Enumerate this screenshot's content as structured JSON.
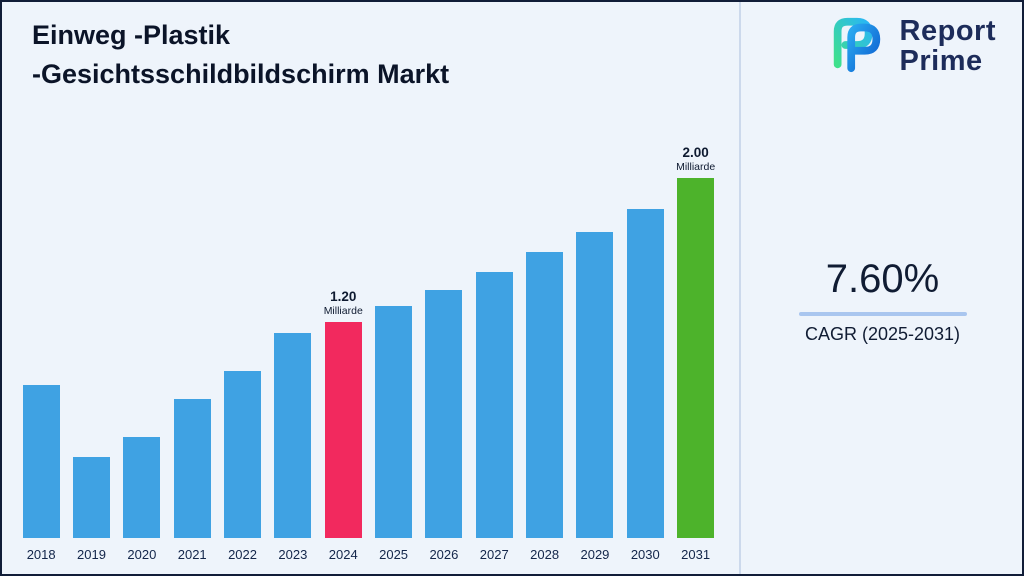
{
  "page": {
    "background": "#eef4fb",
    "border_color": "#111d38"
  },
  "header": {
    "title_line1": "Einweg -Plastik",
    "title_line2": "-Gesichtsschildbildschirm Markt"
  },
  "logo": {
    "line1": "Report",
    "line2": "Prime"
  },
  "stats": {
    "cagr_value": "7.60%",
    "cagr_label": "CAGR (2025-2031)",
    "underline_color": "#a9c6ef"
  },
  "chart_data": {
    "type": "bar",
    "title": "Einweg -Plastik -Gesichtsschildbildschirm Markt",
    "unit": "Milliarde",
    "categories": [
      "2018",
      "2019",
      "2020",
      "2021",
      "2022",
      "2023",
      "2024",
      "2025",
      "2026",
      "2027",
      "2028",
      "2029",
      "2030",
      "2031"
    ],
    "values": [
      0.85,
      0.45,
      0.56,
      0.77,
      0.93,
      1.14,
      1.2,
      1.29,
      1.38,
      1.48,
      1.59,
      1.7,
      1.83,
      2.0
    ],
    "ylim": [
      0,
      2.2
    ],
    "grid": false,
    "legend": "none",
    "bar_color_default": "#3fa2e3",
    "bar_colors": {
      "2024": "#f2295e",
      "2031": "#4db32b"
    },
    "annotations": [
      {
        "category": "2024",
        "value_label": "1.20",
        "unit_label": "Milliarde"
      },
      {
        "category": "2031",
        "value_label": "2.00",
        "unit_label": "Milliarde"
      }
    ]
  }
}
